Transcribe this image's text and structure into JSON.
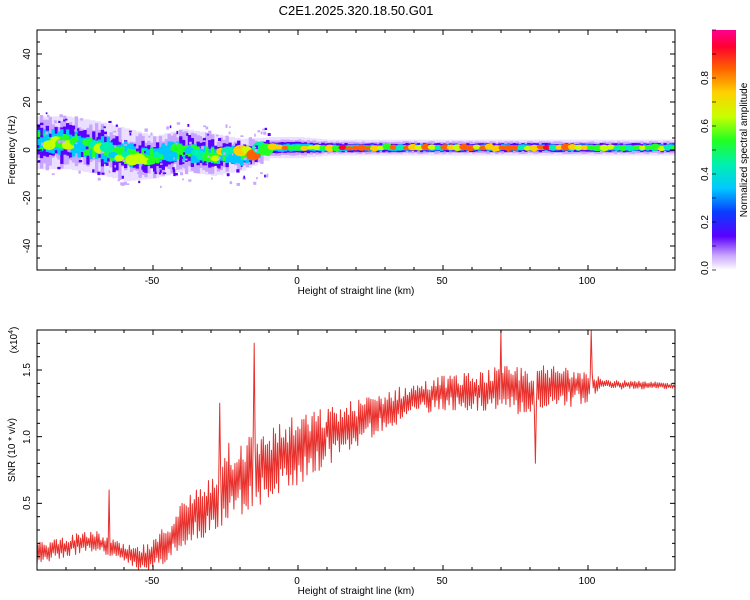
{
  "title": "C2E1.2025.320.18.50.G01",
  "chart_data": [
    {
      "type": "heatmap",
      "xlabel": "Height of straight line (km)",
      "ylabel": "Frequency (Hz)",
      "xlim": [
        -90,
        130
      ],
      "ylim": [
        -50,
        50
      ],
      "xticks": [
        -50,
        0,
        50,
        100
      ],
      "yticks": [
        -40,
        -20,
        0,
        20,
        40
      ],
      "xtick_labels": [
        "-50",
        "0",
        "50",
        "100"
      ],
      "ytick_labels": [
        "-40",
        "-20",
        "0",
        "20",
        "40"
      ],
      "colorbar": {
        "label": "Normalized spectral amplitude",
        "range": [
          0.0,
          1.0
        ],
        "ticks": [
          0.0,
          0.2,
          0.4,
          0.6,
          0.8
        ],
        "tick_labels": [
          "0.0",
          "0.2",
          "0.4",
          "0.6",
          "0.8"
        ]
      },
      "ridge": {
        "x": [
          -90,
          -80,
          -70,
          -60,
          -50,
          -40,
          -30,
          -20,
          -10,
          0,
          10,
          20,
          40,
          60,
          80,
          100,
          130
        ],
        "freq": [
          3,
          3,
          1,
          -2,
          -3,
          0,
          -2,
          -2,
          1,
          1,
          1,
          1,
          1,
          1,
          1,
          1,
          1
        ],
        "spread": [
          5,
          5,
          5,
          5,
          4,
          4,
          4,
          3,
          2,
          2,
          1.5,
          1.5,
          1.5,
          1.5,
          1.5,
          1.5,
          1.5
        ]
      }
    },
    {
      "type": "line",
      "xlabel": "Height of straight line (km)",
      "ylabel": "SNR (10 * v/v)",
      "y_multiplier_base": "(x10",
      "y_multiplier_exp": "4",
      "y_multiplier_close": ")",
      "xlim": [
        -90,
        130
      ],
      "ylim": [
        0.0,
        1.8
      ],
      "xticks": [
        -50,
        0,
        50,
        100
      ],
      "yticks": [
        0.5,
        1.0,
        1.5
      ],
      "xtick_labels": [
        "-50",
        "0",
        "50",
        "100"
      ],
      "ytick_labels": [
        "0.5",
        "1.0",
        "1.5"
      ],
      "color": "#e8302c",
      "envelope_x": [
        -90,
        -80,
        -70,
        -60,
        -55,
        -50,
        -45,
        -40,
        -35,
        -30,
        -25,
        -20,
        -15,
        -10,
        -5,
        0,
        5,
        10,
        20,
        30,
        40,
        50,
        60,
        70,
        80,
        90,
        100,
        110,
        130
      ],
      "envelope_y": [
        0.12,
        0.18,
        0.22,
        0.12,
        0.08,
        0.1,
        0.22,
        0.35,
        0.42,
        0.5,
        0.62,
        0.7,
        0.74,
        0.8,
        0.85,
        0.9,
        0.95,
        1.0,
        1.1,
        1.2,
        1.28,
        1.33,
        1.34,
        1.36,
        1.35,
        1.37,
        1.4,
        1.39,
        1.38
      ],
      "noise_x": [
        -90,
        -60,
        -40,
        -20,
        0,
        20,
        40,
        60,
        80,
        100,
        105,
        130
      ],
      "noise_amp": [
        0.07,
        0.06,
        0.14,
        0.25,
        0.22,
        0.15,
        0.1,
        0.12,
        0.16,
        0.12,
        0.03,
        0.02
      ],
      "spikes": [
        {
          "x": -65,
          "y": 0.6
        },
        {
          "x": -27,
          "y": 1.25
        },
        {
          "x": -24,
          "y": 0.95
        },
        {
          "x": -15,
          "y": 1.7
        },
        {
          "x": -12,
          "y": 1.0
        },
        {
          "x": 10,
          "y": 1.0
        },
        {
          "x": 70,
          "y": 1.8
        },
        {
          "x": 82,
          "y": 0.8
        },
        {
          "x": 101,
          "y": 1.8
        }
      ]
    }
  ]
}
